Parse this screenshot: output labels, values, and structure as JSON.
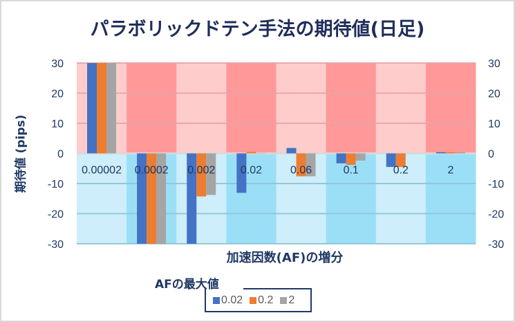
{
  "chart_data": {
    "type": "bar",
    "title": "パラボリックドテン手法の期待値(日足)",
    "xlabel": "加速因数(AF)の増分",
    "ylabel": "期待値 (pips)",
    "ylim": [
      -30,
      30
    ],
    "yticks": [
      "30",
      "20",
      "10",
      "0",
      "-10",
      "-20",
      "-30"
    ],
    "ytick_values": [
      30,
      20,
      10,
      0,
      -10,
      -20,
      -30
    ],
    "categories": [
      "0.00002",
      "0.0002",
      "0.002",
      "0.02",
      "0.06",
      "0.1",
      "0.2",
      "2"
    ],
    "legend_title": "AFの最大値",
    "legend_position": "bottom",
    "grid": true,
    "series": [
      {
        "name": "0.02",
        "color": "#4472c4",
        "values": [
          30,
          -30,
          -30,
          -13.1,
          1.8,
          -3.3,
          -4.5,
          0.4
        ]
      },
      {
        "name": "0.2",
        "color": "#ed7d31",
        "values": [
          30,
          -30,
          -14.3,
          0.5,
          -7.6,
          -3.8,
          -4.5,
          0.4
        ]
      },
      {
        "name": "2",
        "color": "#a5a5a5",
        "values": [
          30,
          -30,
          -13.8,
          0.1,
          -7.6,
          -2.4,
          0,
          0.4
        ]
      }
    ],
    "background_bands": {
      "positive_colors": [
        "#ffcccc",
        "#ff9999"
      ],
      "negative_colors": [
        "#cdeefa",
        "#9bdff7"
      ]
    }
  }
}
